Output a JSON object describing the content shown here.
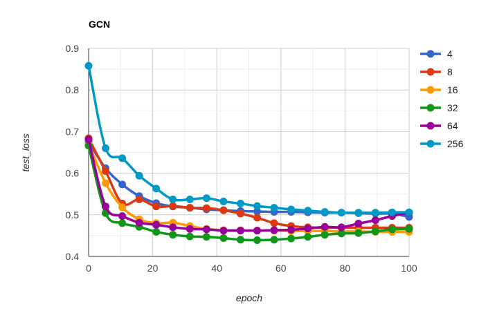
{
  "chart_data": {
    "type": "line",
    "title": "GCN",
    "xlabel": "epoch",
    "ylabel": "test_loss",
    "xlim": [
      0,
      100
    ],
    "ylim": [
      0.4,
      0.9
    ],
    "xticks": [
      0,
      20,
      40,
      60,
      80,
      100
    ],
    "yticks": [
      0.4,
      0.5,
      0.6,
      0.7,
      0.8,
      0.9
    ],
    "grid": true,
    "legend_position": "right",
    "x": [
      0,
      5.3,
      10.5,
      15.8,
      21.1,
      26.3,
      31.6,
      36.8,
      42.1,
      47.4,
      52.6,
      57.9,
      63.2,
      68.4,
      73.7,
      78.9,
      84.2,
      89.5,
      94.7,
      100
    ],
    "series": [
      {
        "name": "4",
        "color": "#3366cc",
        "values": [
          0.675,
          0.612,
          0.573,
          0.545,
          0.528,
          0.52,
          0.517,
          0.513,
          0.511,
          0.509,
          0.508,
          0.507,
          0.507,
          0.506,
          0.505,
          0.505,
          0.504,
          0.503,
          0.503,
          0.495
        ]
      },
      {
        "name": "8",
        "color": "#dc3912",
        "values": [
          0.684,
          0.605,
          0.527,
          0.537,
          0.52,
          0.521,
          0.517,
          0.516,
          0.511,
          0.503,
          0.493,
          0.48,
          0.473,
          0.47,
          0.469,
          0.469,
          0.469,
          0.469,
          0.469,
          0.469
        ]
      },
      {
        "name": "16",
        "color": "#ff9900",
        "values": [
          0.671,
          0.576,
          0.518,
          0.489,
          0.48,
          0.481,
          0.473,
          0.466,
          0.463,
          0.463,
          0.462,
          0.462,
          0.461,
          0.461,
          0.461,
          0.46,
          0.46,
          0.459,
          0.459,
          0.459
        ]
      },
      {
        "name": "32",
        "color": "#109618",
        "values": [
          0.666,
          0.504,
          0.48,
          0.471,
          0.459,
          0.452,
          0.448,
          0.447,
          0.444,
          0.44,
          0.439,
          0.44,
          0.443,
          0.447,
          0.452,
          0.455,
          0.456,
          0.46,
          0.465,
          0.466
        ]
      },
      {
        "name": "64",
        "color": "#990099",
        "values": [
          0.681,
          0.52,
          0.497,
          0.481,
          0.476,
          0.47,
          0.466,
          0.465,
          0.462,
          0.462,
          0.462,
          0.463,
          0.464,
          0.467,
          0.471,
          0.47,
          0.479,
          0.487,
          0.497,
          0.505
        ]
      },
      {
        "name": "256",
        "color": "#0099c6",
        "values": [
          0.858,
          0.66,
          0.636,
          0.594,
          0.563,
          0.537,
          0.537,
          0.54,
          0.532,
          0.527,
          0.521,
          0.517,
          0.513,
          0.51,
          0.507,
          0.505,
          0.505,
          0.505,
          0.506,
          0.506
        ]
      }
    ]
  }
}
